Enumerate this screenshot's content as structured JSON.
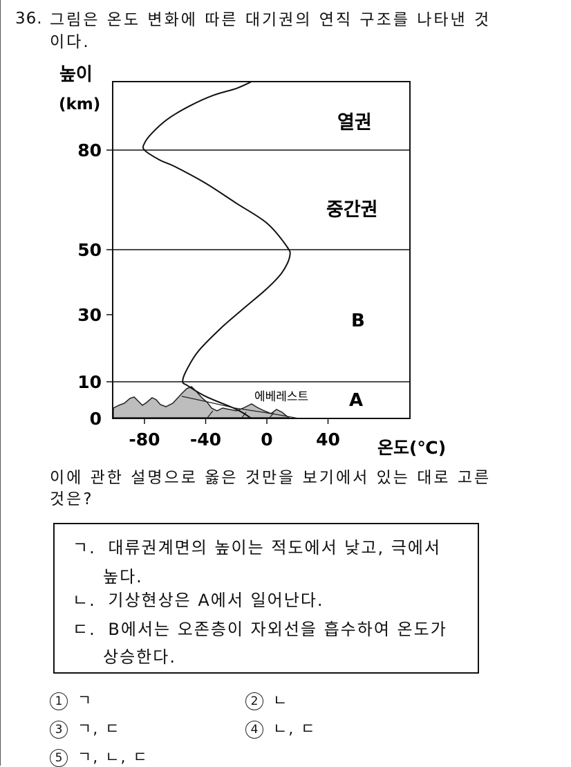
{
  "question": {
    "number": "36.",
    "text_line1": "그림은 온도 변화에 따른 대기권의 연직 구조를 나타낸 것",
    "text_line2": "이다."
  },
  "chart_data": {
    "type": "line",
    "ylabel_line1": "높이",
    "ylabel_line2": "(km)",
    "xlabel": "온도(℃)",
    "x_ticks": [
      "-80",
      "-40",
      "0",
      "40"
    ],
    "y_ticks": [
      "0",
      "10",
      "30",
      "50",
      "80"
    ],
    "xlim": [
      -100,
      80
    ],
    "ylim": [
      0,
      100
    ],
    "layer_boundaries_km": [
      10,
      50,
      80
    ],
    "layer_labels": [
      "A",
      "B",
      "중간권",
      "열권"
    ],
    "mountain_label": "에베레스트",
    "series": [
      {
        "x": [
          -10,
          -20,
          -40,
          -52,
          -55,
          -53,
          -45,
          -30,
          -15,
          0,
          10,
          15,
          13,
          0,
          -20,
          -40,
          -60,
          -70,
          -80,
          -80,
          -75,
          -65,
          -50,
          -35,
          -20,
          -10
        ],
        "y": [
          0,
          2.5,
          6,
          9,
          10,
          13,
          19,
          26,
          32,
          38,
          43,
          48,
          51,
          58,
          64,
          70,
          75,
          77,
          80,
          82,
          85,
          89,
          93,
          96,
          98,
          100
        ]
      }
    ]
  },
  "prompt": {
    "line1": "이에 관한 설명으로 옳은 것만을 보기에서 있는 대로 고른",
    "line2": "것은?"
  },
  "bogi": [
    {
      "marker": "ㄱ.",
      "line1": "대류권계면의 높이는 적도에서 낮고, 극에서",
      "line2": "높다."
    },
    {
      "marker": "ㄴ.",
      "line1": "기상현상은 A에서 일어난다.",
      "line2": ""
    },
    {
      "marker": "ㄷ.",
      "line1": "B에서는 오존층이 자외선을 흡수하여 온도가",
      "line2": "상승한다."
    }
  ],
  "choices": [
    {
      "mark": "1",
      "text": "ㄱ"
    },
    {
      "mark": "2",
      "text": "ㄴ"
    },
    {
      "mark": "3",
      "text": "ㄱ, ㄷ"
    },
    {
      "mark": "4",
      "text": "ㄴ, ㄷ"
    },
    {
      "mark": "5",
      "text": "ㄱ, ㄴ, ㄷ"
    }
  ]
}
